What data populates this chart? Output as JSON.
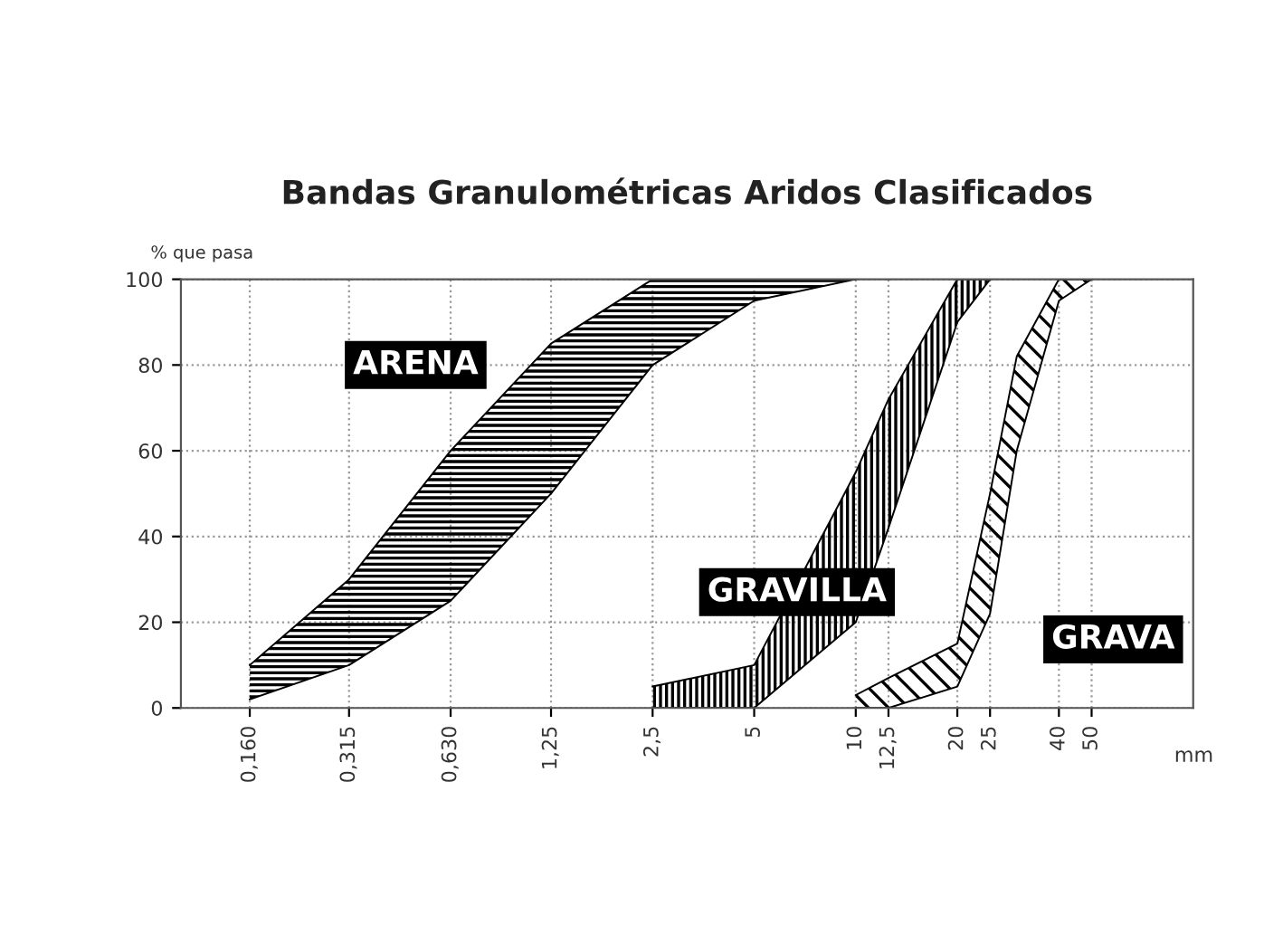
{
  "chart_data": {
    "type": "line",
    "title": "Bandas Granulométricas Aridos Clasificados",
    "ylabel": "% que pasa",
    "xlabel": "mm",
    "log": "x",
    "xlim": [
      0.1,
      100
    ],
    "ylim": [
      0,
      100
    ],
    "xticks": [
      {
        "value": 0.16,
        "label": "0,160"
      },
      {
        "value": 0.315,
        "label": "0,315"
      },
      {
        "value": 0.63,
        "label": "0,630"
      },
      {
        "value": 1.25,
        "label": "1,25"
      },
      {
        "value": 2.5,
        "label": "2,5"
      },
      5,
      10,
      {
        "value": 12.5,
        "label": "12,5"
      },
      20,
      25,
      40,
      50
    ],
    "yticks": [
      0,
      20,
      40,
      60,
      80,
      100
    ],
    "grid": true,
    "legend": false,
    "marker": "none",
    "series": [
      {
        "name": "ARENA",
        "color": "#000000",
        "x": [
          0.16,
          0.315,
          0.63,
          1.25,
          2.5,
          5,
          10
        ],
        "values": [
          10,
          30,
          60,
          85,
          100,
          100,
          100
        ]
      },
      {
        "color": "#000000",
        "x": [
          0.16,
          0.315,
          0.63,
          1.25,
          2.5,
          5,
          10
        ],
        "values": [
          2,
          10,
          25,
          50,
          80,
          95,
          100
        ]
      },
      {
        "name": "GRAVILLA",
        "color": "#000000",
        "x": [
          2.5,
          5,
          10,
          12.5,
          20,
          25
        ],
        "values": [
          5,
          10,
          55,
          72,
          100,
          100
        ]
      },
      {
        "color": "#000000",
        "x": [
          2.5,
          5,
          10,
          12.5,
          20,
          25
        ],
        "values": [
          0,
          0,
          20,
          42,
          90,
          100
        ]
      },
      {
        "name": "GRAVA",
        "color": "#000000",
        "x": [
          10,
          12.5,
          20,
          25,
          30,
          40,
          50
        ],
        "values": [
          3,
          7,
          15,
          50,
          82,
          100,
          100
        ]
      },
      {
        "color": "#000000",
        "x": [
          10,
          12.5,
          20,
          25,
          30,
          40,
          50
        ],
        "values": [
          0,
          0,
          5,
          22,
          60,
          95,
          100
        ]
      }
    ]
  }
}
